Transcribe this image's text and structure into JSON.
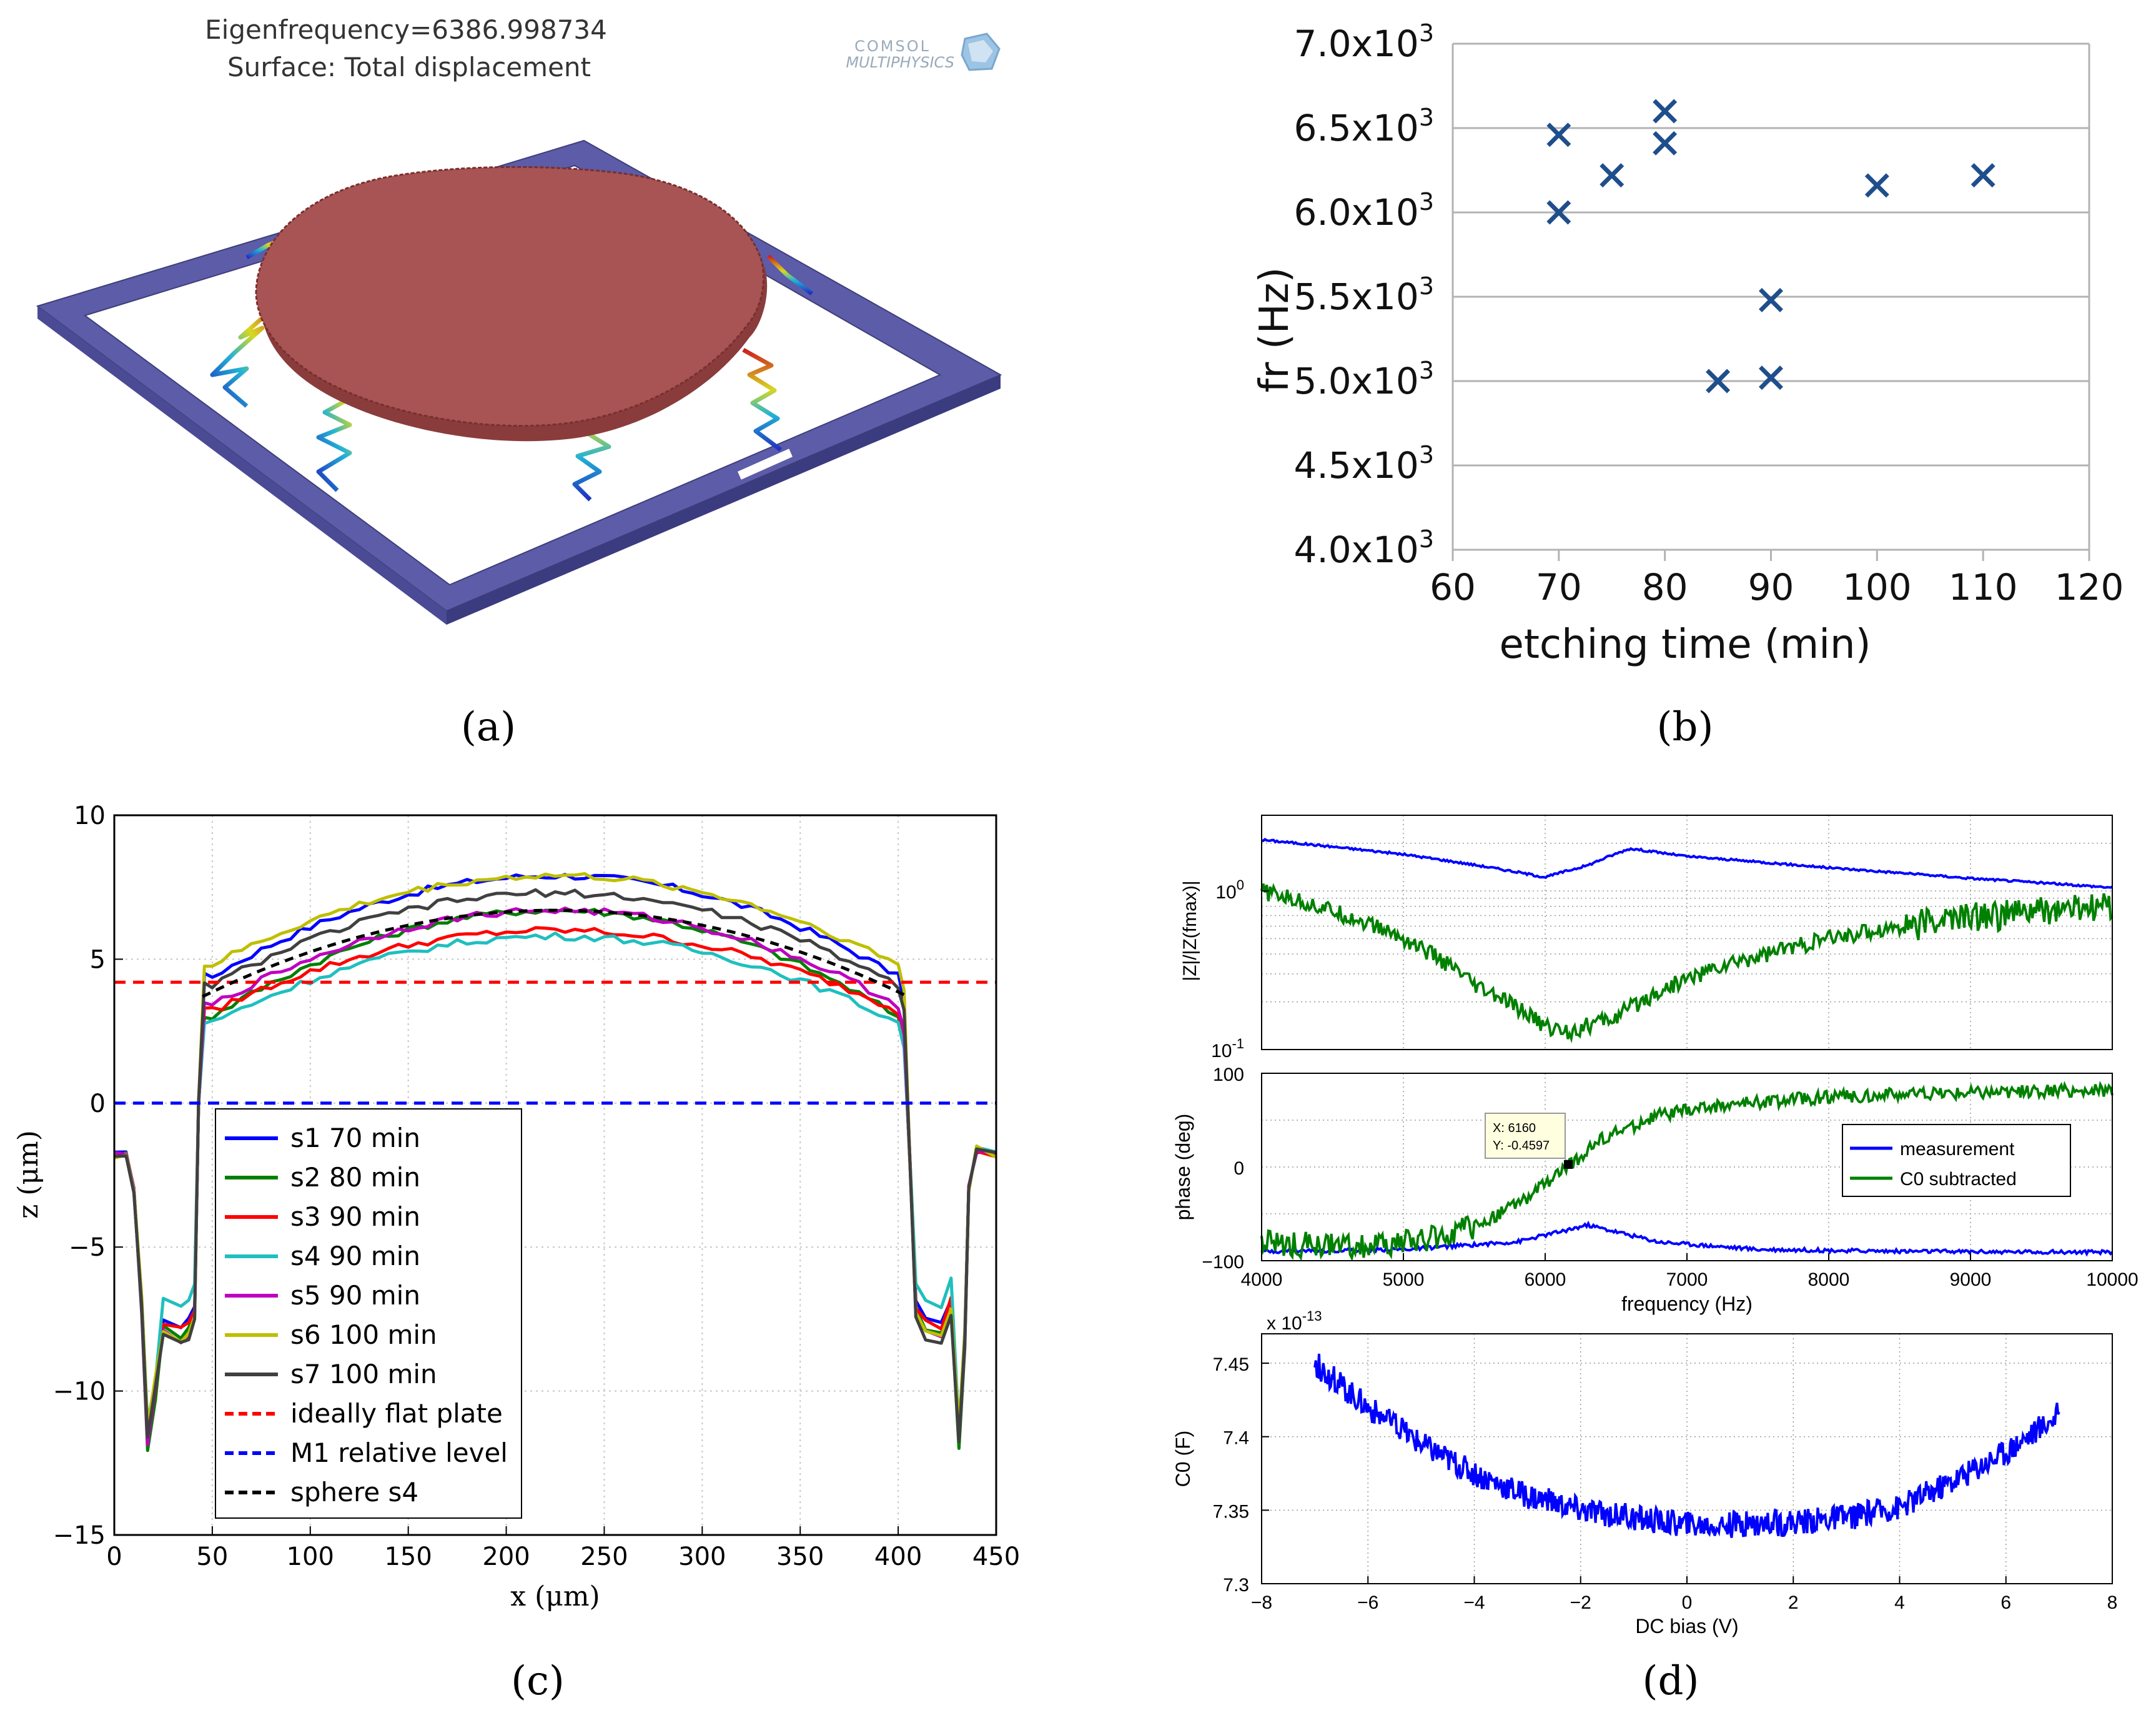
{
  "figure": {
    "panel_a": {
      "label": "(a)",
      "title_line1": "Eigenfrequency=6386.998734",
      "title_line2": "Surface: Total displacement",
      "logo_line1": "COMSOL",
      "logo_line2": "MULTIPHYSICS",
      "colors": {
        "frame": "#5c5ca8",
        "plate": "#a85454"
      }
    },
    "panel_b": {
      "label": "(b)"
    },
    "panel_c": {
      "label": "(c)"
    },
    "panel_d": {
      "label": "(d)",
      "datatip_x": "X: 6160",
      "datatip_y": "Y: -0.4597"
    }
  },
  "chart_data": [
    {
      "id": "b",
      "type": "scatter",
      "xlabel": "etching time (min)",
      "ylabel": "fr (Hz)",
      "xlim": [
        60,
        120
      ],
      "ylim": [
        4000,
        7000
      ],
      "xticks": [
        "60",
        "70",
        "80",
        "90",
        "100",
        "110",
        "120"
      ],
      "yticks": [
        "4.0x10",
        "4.5x10",
        "5.0x10",
        "5.5x10",
        "6.0x10",
        "6.5x10",
        "7.0x10"
      ],
      "ytick_exponent": "3",
      "grid": "horizontal",
      "marker": "x",
      "color": "#1f4e8c",
      "x": [
        70,
        70,
        75,
        80,
        80,
        85,
        90,
        90,
        100,
        110
      ],
      "y": [
        6460,
        6000,
        6220,
        6600,
        6410,
        5000,
        5020,
        5480,
        6160,
        6220
      ]
    },
    {
      "id": "c",
      "type": "line",
      "xlabel": "x (μm)",
      "ylabel": "z (μm)",
      "xlim": [
        0,
        450
      ],
      "ylim": [
        -15,
        10
      ],
      "xticks": [
        "0",
        "50",
        "100",
        "150",
        "200",
        "250",
        "300",
        "350",
        "400",
        "450"
      ],
      "yticks": [
        "−15",
        "−10",
        "−5",
        "0",
        "5",
        "10"
      ],
      "grid": "dotted",
      "legend_position": "bottom-left",
      "series": [
        {
          "name": "s1 70 min",
          "color": "#0000ff",
          "style": "solid",
          "top": 7.9,
          "edge": 4.4,
          "well": -11.5,
          "shelf": -7.5
        },
        {
          "name": "s2 80 min",
          "color": "#008000",
          "style": "solid",
          "top": 6.7,
          "edge": 3.0,
          "well": -12.0,
          "shelf": -7.8
        },
        {
          "name": "s3 90 min",
          "color": "#ff0000",
          "style": "solid",
          "top": 6.0,
          "edge": 3.2,
          "well": -11.6,
          "shelf": -7.6
        },
        {
          "name": "s4 90 min",
          "color": "#1fbfbf",
          "style": "solid",
          "top": 5.8,
          "edge": 2.8,
          "well": -11.2,
          "shelf": -6.8
        },
        {
          "name": "s5 90 min",
          "color": "#bf00bf",
          "style": "solid",
          "top": 6.7,
          "edge": 3.4,
          "well": -11.8,
          "shelf": -8.0
        },
        {
          "name": "s6 100 min",
          "color": "#bfbf00",
          "style": "solid",
          "top": 7.9,
          "edge": 4.8,
          "well": -11.3,
          "shelf": -7.9
        },
        {
          "name": "s7 100 min",
          "color": "#404040",
          "style": "solid",
          "top": 7.3,
          "edge": 4.1,
          "well": -11.7,
          "shelf": -8.1
        },
        {
          "name": "ideally flat plate",
          "color": "#ff0000",
          "style": "dashed",
          "constant": 4.2
        },
        {
          "name": "M1 relative level",
          "color": "#0000ff",
          "style": "dashed",
          "constant": 0
        },
        {
          "name": "sphere s4",
          "color": "#000000",
          "style": "dashed",
          "top": 6.7,
          "edge": 3.7,
          "xrange": [
            45,
            405
          ]
        }
      ]
    },
    {
      "id": "d_mag",
      "type": "line",
      "ylabel": "|Z|/|Z(fmax)|",
      "yscale": "log",
      "xlim": [
        4000,
        10000
      ],
      "ylim": [
        0.1,
        3
      ],
      "yticks": [
        "10",
        "10"
      ],
      "ytick_exponents": [
        "-1",
        "0"
      ],
      "grid": "dotted",
      "series": [
        {
          "name": "measurement",
          "color": "#0000ff",
          "x": [
            4000,
            5000,
            6000,
            6300,
            6600,
            7000,
            8000,
            9000,
            10000
          ],
          "y": [
            2.1,
            1.7,
            1.22,
            1.45,
            1.85,
            1.65,
            1.4,
            1.2,
            1.05
          ]
        },
        {
          "name": "C0 subtracted",
          "color": "#008000",
          "x": [
            4000,
            4500,
            5000,
            5500,
            6000,
            6160,
            6500,
            7000,
            8000,
            9000,
            10000
          ],
          "y": [
            1.0,
            0.75,
            0.5,
            0.25,
            0.14,
            0.13,
            0.16,
            0.28,
            0.5,
            0.7,
            0.8
          ]
        }
      ]
    },
    {
      "id": "d_phase",
      "type": "line",
      "xlabel": "frequency (Hz)",
      "ylabel": "phase (deg)",
      "xlim": [
        4000,
        10000
      ],
      "ylim": [
        -100,
        100
      ],
      "xticks": [
        "4000",
        "5000",
        "6000",
        "7000",
        "8000",
        "9000",
        "10000"
      ],
      "yticks": [
        "−100",
        "0",
        "100"
      ],
      "grid": "dotted",
      "legend_position": "right",
      "series": [
        {
          "name": "measurement",
          "color": "#0000ff",
          "x": [
            4000,
            5000,
            5800,
            6300,
            6800,
            7500,
            8500,
            10000
          ],
          "y": [
            -90,
            -88,
            -80,
            -62,
            -80,
            -88,
            -90,
            -91
          ]
        },
        {
          "name": "C0 subtracted",
          "color": "#008000",
          "x": [
            4000,
            4500,
            5000,
            5500,
            5900,
            6160,
            6400,
            6800,
            7200,
            8000,
            9000,
            10000
          ],
          "y": [
            -80,
            -85,
            -82,
            -65,
            -30,
            0,
            30,
            55,
            65,
            75,
            80,
            82
          ]
        }
      ]
    },
    {
      "id": "d_c0",
      "type": "line",
      "xlabel": "DC bias (V)",
      "ylabel": "C0 (F)",
      "xlim": [
        -8,
        8
      ],
      "ylim": [
        7.3,
        7.47
      ],
      "xticks": [
        "−8",
        "−6",
        "−4",
        "−2",
        "0",
        "2",
        "4",
        "6",
        "8"
      ],
      "yticks": [
        "7.3",
        "7.35",
        "7.4",
        "7.45"
      ],
      "scale_label": "x 10",
      "scale_exponent": "-13",
      "grid": "dotted",
      "series": [
        {
          "name": "C0",
          "color": "#0000ff",
          "x": [
            -7,
            -6,
            -5,
            -4,
            -3,
            -2,
            -1,
            0,
            1,
            2,
            3,
            4,
            5,
            6,
            7
          ],
          "y": [
            7.45,
            7.42,
            7.395,
            7.375,
            7.36,
            7.35,
            7.345,
            7.34,
            7.34,
            7.342,
            7.345,
            7.352,
            7.37,
            7.39,
            7.415
          ]
        }
      ]
    }
  ]
}
